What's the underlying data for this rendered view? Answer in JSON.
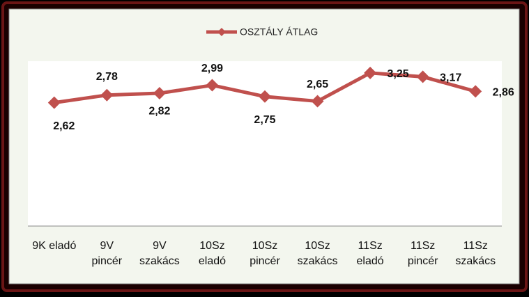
{
  "chart_data": {
    "type": "line",
    "title": null,
    "categories": [
      "9K eladó",
      "9V\npincér",
      "9V\nszakács",
      "10Sz\neladó",
      "10Sz\npincér",
      "10Sz\nszakács",
      "11Sz\neladó",
      "11Sz\npincér",
      "11Sz\nszakács"
    ],
    "series": [
      {
        "name": "OSZTÁLY ÁTLAG",
        "color": "#c0504d",
        "values": [
          2.62,
          2.78,
          2.82,
          2.99,
          2.75,
          2.65,
          3.25,
          3.17,
          2.86
        ],
        "value_labels": [
          "2,62",
          "2,78",
          "2,82",
          "2,99",
          "2,75",
          "2,65",
          "3,25",
          "3,17",
          "2,86"
        ]
      }
    ],
    "ylim": [
      0,
      3.5
    ],
    "legend": "top"
  }
}
